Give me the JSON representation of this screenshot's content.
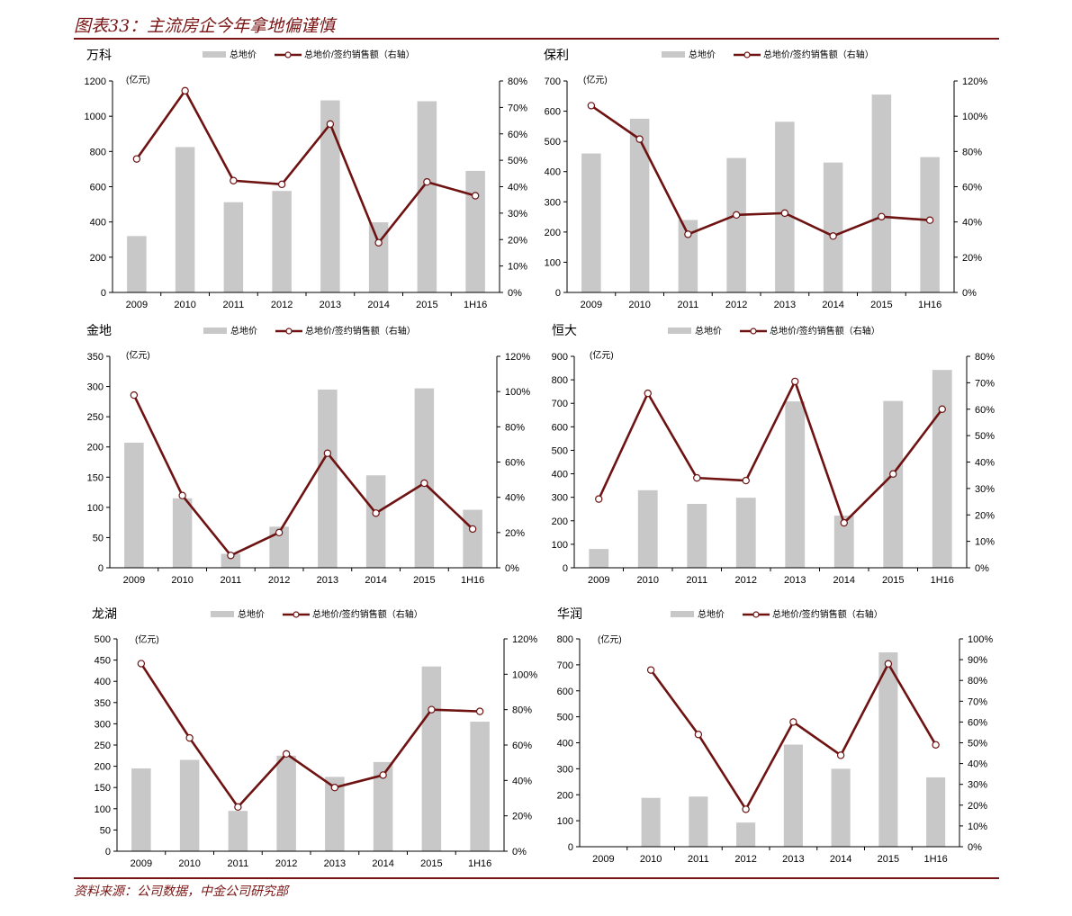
{
  "figure_title": "图表33：主流房企今年拿地偏谨慎",
  "source": "资料来源：公司数据，中金公司研究部",
  "colors": {
    "bar": "#c8c8c8",
    "line": "#6e1212",
    "accent": "#7a1414"
  },
  "chart_data": [
    {
      "type": "bar+line",
      "title": "万科",
      "unit_label": "(亿元)",
      "categories": [
        "2009",
        "2010",
        "2011",
        "2012",
        "2013",
        "2014",
        "2015",
        "1H16"
      ],
      "legend": "top",
      "series": [
        {
          "name": "总地价",
          "kind": "bar",
          "axis": "left",
          "values": [
            320,
            825,
            512,
            576,
            1090,
            398,
            1085,
            690
          ]
        },
        {
          "name": "总地价/签约销售额（右轴）",
          "kind": "line",
          "axis": "right",
          "values": [
            0.505,
            0.763,
            0.423,
            0.409,
            0.637,
            0.188,
            0.418,
            0.366
          ]
        }
      ],
      "ylim_left": [
        0,
        1200
      ],
      "yticks_left": [
        "0",
        "200",
        "400",
        "600",
        "800",
        "1000",
        "1200"
      ],
      "ylim_right": [
        0,
        0.8
      ],
      "yticks_right": [
        "0%",
        "10%",
        "20%",
        "30%",
        "40%",
        "50%",
        "60%",
        "70%",
        "80%"
      ]
    },
    {
      "type": "bar+line",
      "title": "保利",
      "unit_label": "(亿元)",
      "categories": [
        "2009",
        "2010",
        "2011",
        "2012",
        "2013",
        "2014",
        "2015",
        "1H16"
      ],
      "legend": "top",
      "series": [
        {
          "name": "总地价",
          "kind": "bar",
          "axis": "left",
          "values": [
            460,
            575,
            240,
            445,
            565,
            430,
            655,
            448
          ]
        },
        {
          "name": "总地价/签约销售额（右轴）",
          "kind": "line",
          "axis": "right",
          "values": [
            1.06,
            0.87,
            0.33,
            0.44,
            0.45,
            0.32,
            0.43,
            0.41
          ]
        }
      ],
      "ylim_left": [
        0,
        700
      ],
      "yticks_left": [
        "0",
        "100",
        "200",
        "300",
        "400",
        "500",
        "600",
        "700"
      ],
      "ylim_right": [
        0,
        1.2
      ],
      "yticks_right": [
        "0%",
        "20%",
        "40%",
        "60%",
        "80%",
        "100%",
        "120%"
      ]
    },
    {
      "type": "bar+line",
      "title": "金地",
      "unit_label": "(亿元)",
      "categories": [
        "2009",
        "2010",
        "2011",
        "2012",
        "2013",
        "2014",
        "2015",
        "1H16"
      ],
      "legend": "top",
      "series": [
        {
          "name": "总地价",
          "kind": "bar",
          "axis": "left",
          "values": [
            207,
            115,
            23,
            68,
            295,
            153,
            297,
            96
          ]
        },
        {
          "name": "总地价/签约销售额（右轴）",
          "kind": "line",
          "axis": "right",
          "values": [
            0.98,
            0.41,
            0.07,
            0.2,
            0.65,
            0.31,
            0.48,
            0.22
          ]
        }
      ],
      "ylim_left": [
        0,
        350
      ],
      "yticks_left": [
        "0",
        "50",
        "100",
        "150",
        "200",
        "250",
        "300",
        "350"
      ],
      "ylim_right": [
        0,
        1.2
      ],
      "yticks_right": [
        "0%",
        "20%",
        "40%",
        "60%",
        "80%",
        "100%",
        "120%"
      ]
    },
    {
      "type": "bar+line",
      "title": "恒大",
      "unit_label": "(亿元)",
      "categories": [
        "2009",
        "2010",
        "2011",
        "2012",
        "2013",
        "2014",
        "2015",
        "1H16"
      ],
      "legend": "top",
      "series": [
        {
          "name": "总地价",
          "kind": "bar",
          "axis": "left",
          "values": [
            80,
            330,
            272,
            298,
            708,
            222,
            710,
            842
          ]
        },
        {
          "name": "总地价/签约销售额（右轴）",
          "kind": "line",
          "axis": "right",
          "values": [
            0.26,
            0.66,
            0.34,
            0.33,
            0.705,
            0.17,
            0.355,
            0.6
          ]
        }
      ],
      "ylim_left": [
        0,
        900
      ],
      "yticks_left": [
        "0",
        "100",
        "200",
        "300",
        "400",
        "500",
        "600",
        "700",
        "800",
        "900"
      ],
      "ylim_right": [
        0,
        0.8
      ],
      "yticks_right": [
        "0%",
        "10%",
        "20%",
        "30%",
        "40%",
        "50%",
        "60%",
        "70%",
        "80%"
      ]
    },
    {
      "type": "bar+line",
      "title": "龙湖",
      "unit_label": "(亿元)",
      "categories": [
        "2009",
        "2010",
        "2011",
        "2012",
        "2013",
        "2014",
        "2015",
        "1H16"
      ],
      "legend": "top",
      "series": [
        {
          "name": "总地价",
          "kind": "bar",
          "axis": "left",
          "values": [
            195,
            215,
            95,
            225,
            175,
            210,
            435,
            305
          ]
        },
        {
          "name": "总地价/签约销售额（右轴）",
          "kind": "line",
          "axis": "right",
          "values": [
            1.06,
            0.64,
            0.25,
            0.55,
            0.36,
            0.43,
            0.8,
            0.79
          ]
        }
      ],
      "ylim_left": [
        0,
        500
      ],
      "yticks_left": [
        "0",
        "50",
        "100",
        "150",
        "200",
        "250",
        "300",
        "350",
        "400",
        "450",
        "500"
      ],
      "ylim_right": [
        0,
        1.2
      ],
      "yticks_right": [
        "0%",
        "20%",
        "40%",
        "60%",
        "80%",
        "100%",
        "120%"
      ]
    },
    {
      "type": "bar+line",
      "title": "华润",
      "unit_label": "(亿元)",
      "categories": [
        "2009",
        "2010",
        "2011",
        "2012",
        "2013",
        "2014",
        "2015",
        "1H16"
      ],
      "legend": "top",
      "series": [
        {
          "name": "总地价",
          "kind": "bar",
          "axis": "left",
          "values": [
            null,
            188,
            193,
            93,
            393,
            300,
            748,
            267
          ]
        },
        {
          "name": "总地价/签约销售额（右轴）",
          "kind": "line",
          "axis": "right",
          "values": [
            null,
            0.85,
            0.54,
            0.18,
            0.6,
            0.44,
            0.88,
            0.49
          ]
        }
      ],
      "ylim_left": [
        0,
        800
      ],
      "yticks_left": [
        "0",
        "100",
        "200",
        "300",
        "400",
        "500",
        "600",
        "700",
        "800"
      ],
      "ylim_right": [
        0,
        1.0
      ],
      "yticks_right": [
        "0%",
        "10%",
        "20%",
        "30%",
        "40%",
        "50%",
        "60%",
        "70%",
        "80%",
        "90%",
        "100%"
      ]
    }
  ]
}
